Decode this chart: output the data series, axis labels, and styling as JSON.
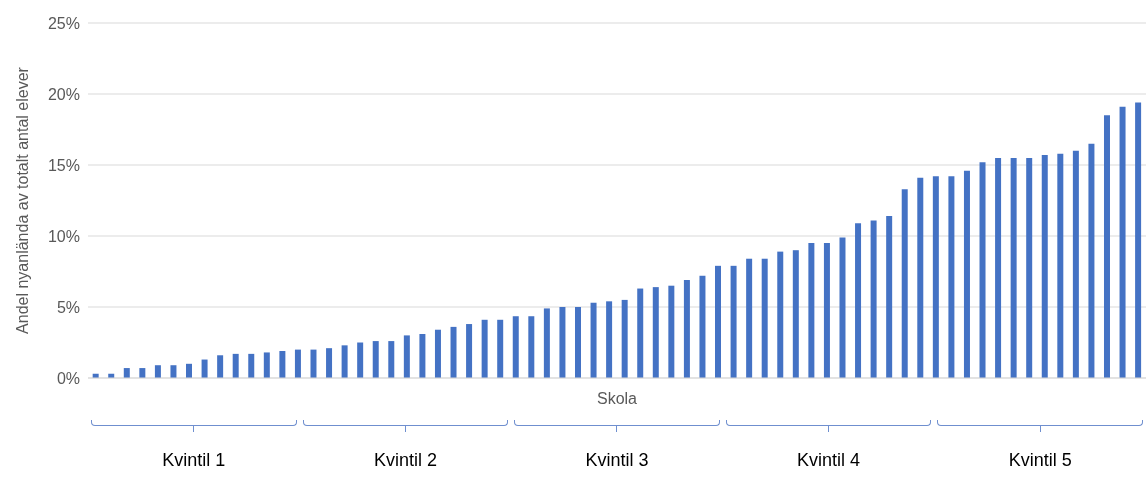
{
  "chart_data": {
    "type": "bar",
    "xlabel": "Skola",
    "ylabel": "Andel nyanlända av totalt antal elever",
    "categories": [
      null,
      null,
      null,
      null,
      null,
      null,
      null,
      null,
      null,
      null,
      null,
      null,
      null,
      null,
      null,
      null,
      null,
      null,
      null,
      null,
      null,
      null,
      null,
      null,
      null,
      null,
      null,
      null,
      null,
      null,
      null,
      null,
      null,
      null,
      null,
      null,
      null,
      null,
      null,
      null,
      null,
      null,
      null,
      null,
      null,
      null,
      null,
      null,
      null,
      null,
      null,
      null,
      null,
      null,
      null,
      null,
      null,
      null,
      null,
      null,
      null,
      null,
      null,
      null,
      null,
      null,
      null,
      null
    ],
    "values": [
      0.3,
      0.3,
      0.7,
      0.7,
      0.9,
      0.9,
      1.0,
      1.3,
      1.6,
      1.7,
      1.7,
      1.8,
      1.9,
      2.0,
      2.0,
      2.1,
      2.3,
      2.5,
      2.6,
      2.6,
      3.0,
      3.1,
      3.4,
      3.6,
      3.8,
      4.1,
      4.1,
      4.35,
      4.35,
      4.9,
      5.0,
      5.0,
      5.3,
      5.4,
      5.5,
      6.3,
      6.4,
      6.5,
      6.9,
      7.2,
      7.9,
      7.9,
      8.4,
      8.4,
      8.9,
      9.0,
      9.5,
      9.5,
      9.9,
      10.9,
      11.1,
      11.4,
      13.3,
      14.1,
      14.2,
      14.2,
      14.6,
      15.2,
      15.5,
      15.5,
      15.5,
      15.7,
      15.8,
      16.0,
      16.5,
      18.5,
      19.1,
      19.4
    ],
    "color": "#4472c4",
    "ylim": [
      0,
      25
    ],
    "yticks": [
      {
        "value": 0,
        "label": "0%"
      },
      {
        "value": 5,
        "label": "5%"
      },
      {
        "value": 10,
        "label": "10%"
      },
      {
        "value": 15,
        "label": "15%"
      },
      {
        "value": 20,
        "label": "20%"
      },
      {
        "value": 25,
        "label": "25%"
      }
    ],
    "grid": "y",
    "annotations": [
      "Kvintil 1",
      "Kvintil 2",
      "Kvintil 3",
      "Kvintil 4",
      "Kvintil 5"
    ]
  }
}
